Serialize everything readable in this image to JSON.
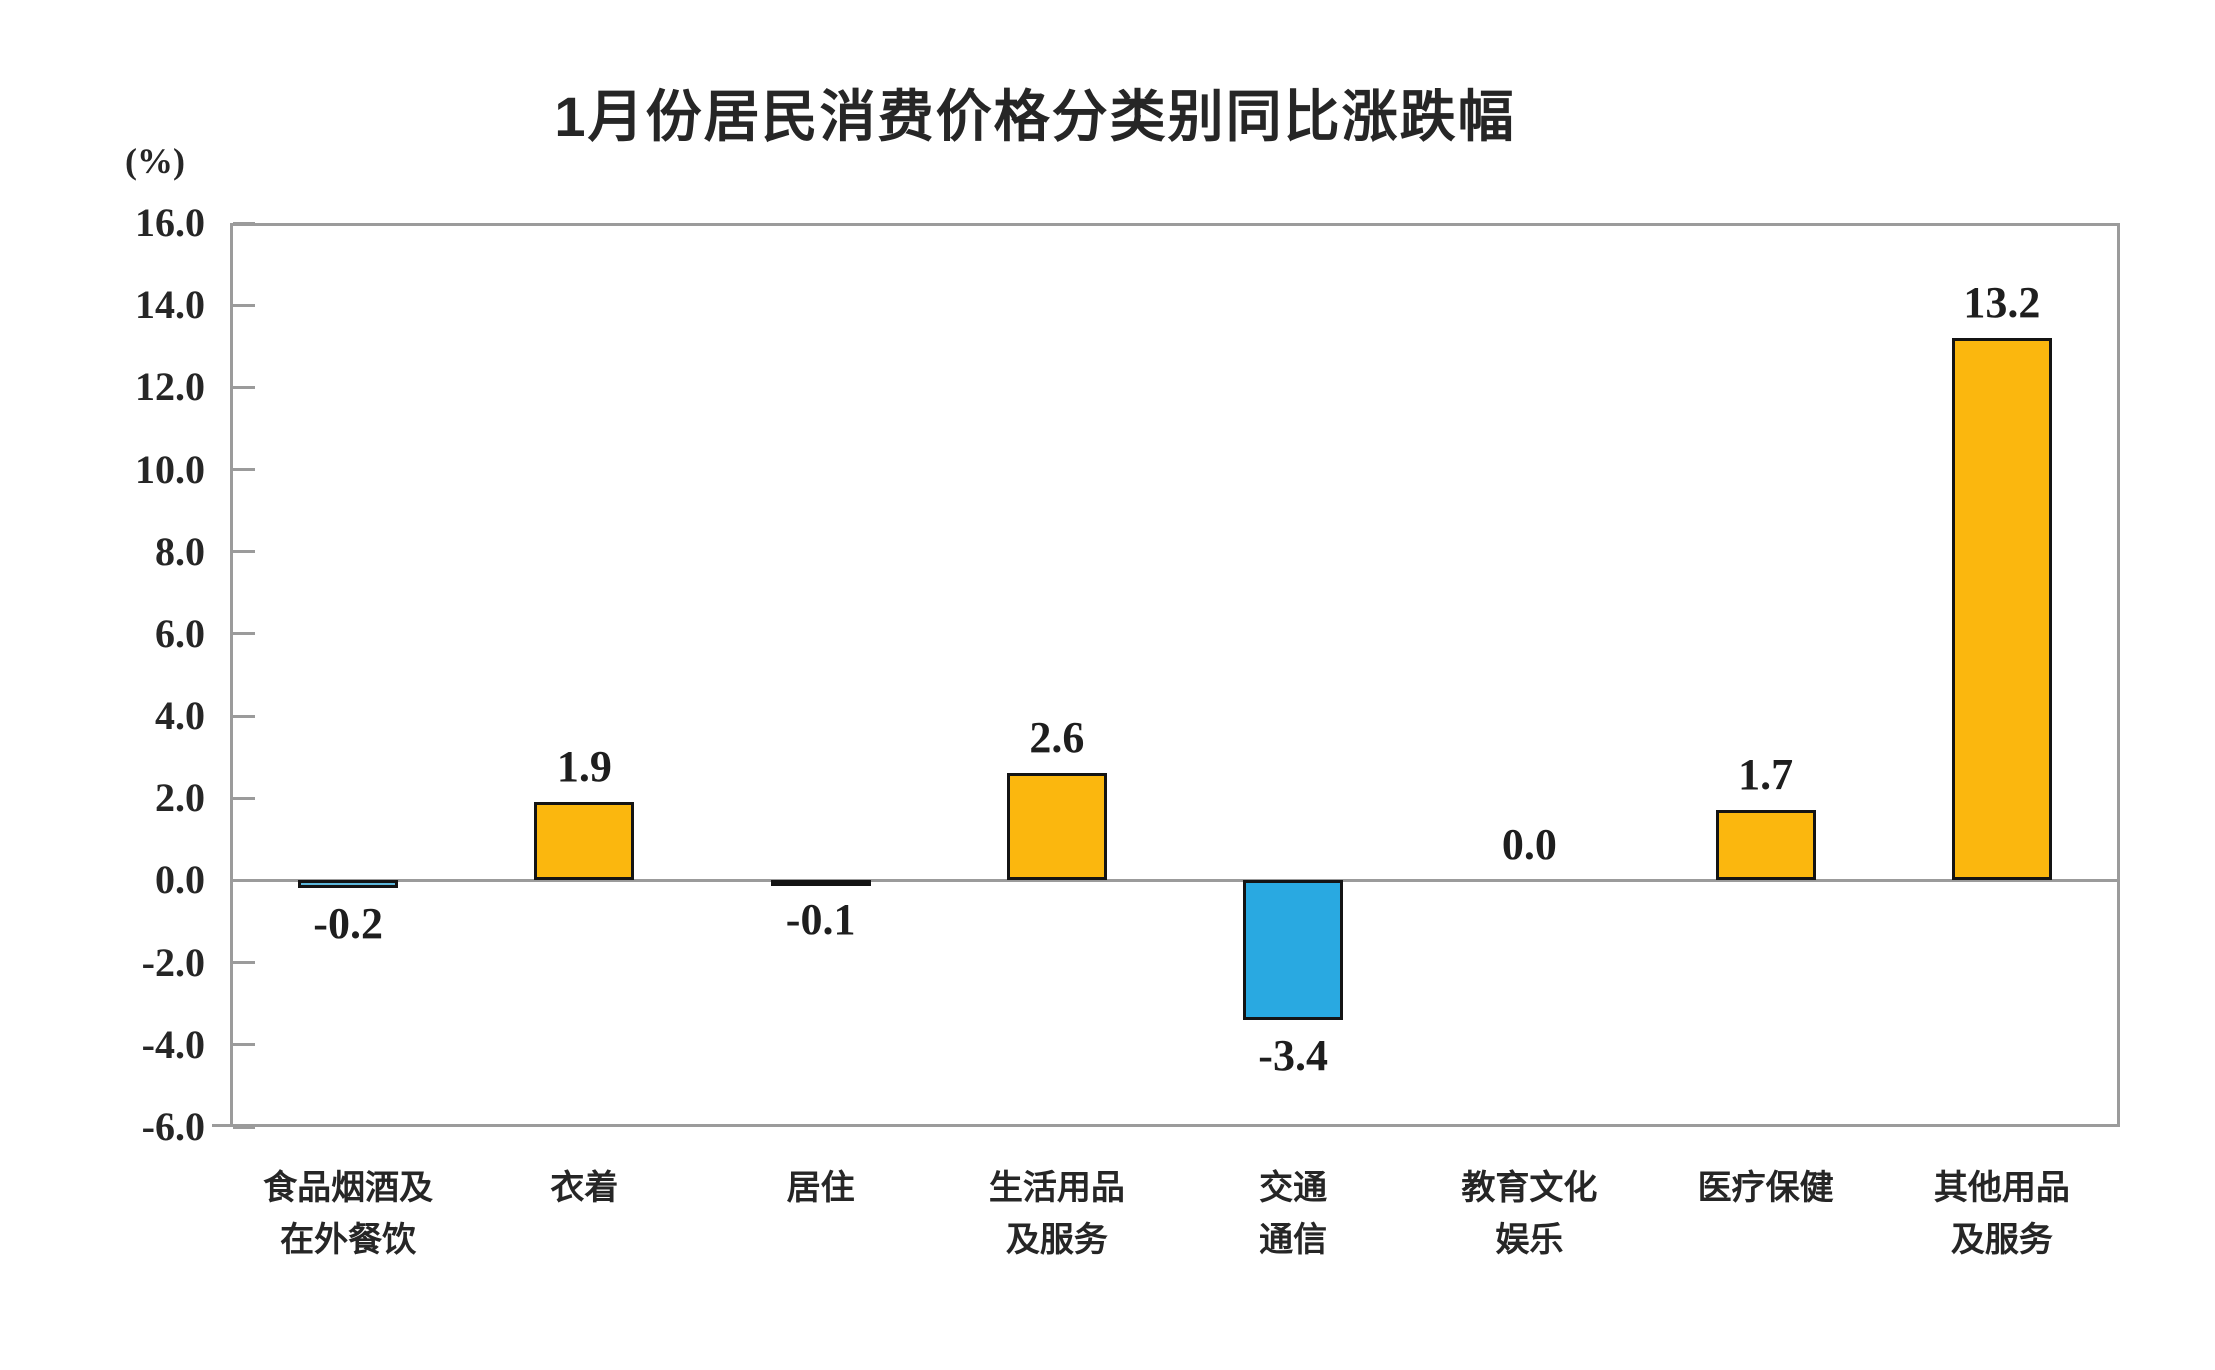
{
  "title": "1月份居民消费价格分类别同比涨跌幅",
  "unit_label": "(%)",
  "chart_data": {
    "type": "bar",
    "title": "1月份居民消费价格分类别同比涨跌幅",
    "ylabel": "(%)",
    "categories": [
      "食品烟酒及\n在外餐饮",
      "衣着",
      "居住",
      "生活用品\n及服务",
      "交通\n通信",
      "教育文化\n娱乐",
      "医疗保健",
      "其他用品\n及服务"
    ],
    "values": [
      -0.2,
      1.9,
      -0.1,
      2.6,
      -3.4,
      0.0,
      1.7,
      13.2
    ],
    "value_labels": [
      "-0.2",
      "1.9",
      "-0.1",
      "2.6",
      "-3.4",
      "0.0",
      "1.7",
      "13.2"
    ],
    "bar_colors": [
      "#5cb7db",
      "#fbb70e",
      "#29a9e1",
      "#fbb70e",
      "#29a9e1",
      null,
      "#fbb70e",
      "#fbb70e"
    ],
    "ylim": [
      -6.0,
      16.0
    ],
    "ytick_step": 2.0,
    "ytick_labels": [
      "16.0",
      "14.0",
      "12.0",
      "10.0",
      "8.0",
      "6.0",
      "4.0",
      "2.0",
      "0.0",
      "-2.0",
      "-4.0",
      "-6.0"
    ],
    "grid": false,
    "legend_position": "none",
    "colors": {
      "positive_bar": "#fbb70e",
      "negative_bar": "#29a9e1",
      "bar_border": "#141414",
      "axis": "#9b9b9b",
      "text": "#262626"
    }
  }
}
